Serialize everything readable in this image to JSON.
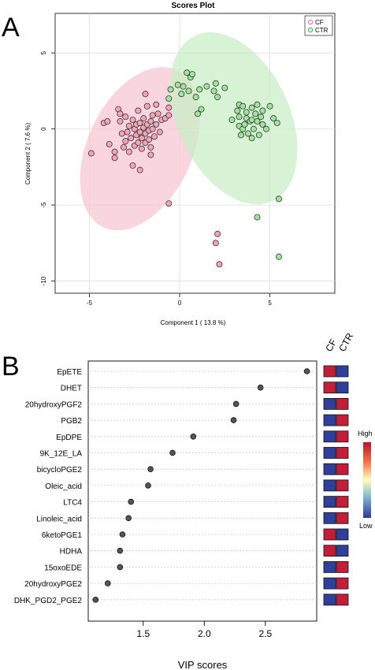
{
  "panels": {
    "a": "A",
    "b": "B"
  },
  "chart_data": [
    {
      "type": "scatter",
      "title": "Scores Plot",
      "xlabel": "Component 1 ( 13.8 %)",
      "ylabel": "Component 2 ( 7.6 %)",
      "xlim": [
        -6.9,
        8.6
      ],
      "ylim": [
        -10.8,
        7.6
      ],
      "xticks": [
        -5,
        0,
        5
      ],
      "yticks": [
        -10,
        -5,
        0,
        5
      ],
      "grid": true,
      "legend_position": "top-right",
      "series": [
        {
          "name": "CF",
          "color": "#e8708a",
          "fill": "#f5a3b8",
          "ellipse": {
            "center": [
              -2.2,
              -1.3
            ],
            "semi_axes": [
              2.9,
              5.7
            ],
            "angle_deg": 25,
            "fill": "#f7c8d4"
          },
          "points": [
            [
              -4.9,
              -1.6
            ],
            [
              -4.2,
              0.4
            ],
            [
              -4.0,
              0.5
            ],
            [
              -3.9,
              -1.0
            ],
            [
              -3.6,
              -1.5
            ],
            [
              -3.4,
              1.3
            ],
            [
              -3.3,
              0.5
            ],
            [
              -3.2,
              -0.3
            ],
            [
              -3.1,
              -1.2
            ],
            [
              -3.0,
              0.8
            ],
            [
              -3.0,
              -0.8
            ],
            [
              -2.9,
              -0.2
            ],
            [
              -2.8,
              0.2
            ],
            [
              -2.8,
              -1.5
            ],
            [
              -2.7,
              -0.6
            ],
            [
              -2.6,
              0.6
            ],
            [
              -2.6,
              -2.4
            ],
            [
              -2.5,
              0.0
            ],
            [
              -2.5,
              -1.1
            ],
            [
              -2.4,
              -0.4
            ],
            [
              -2.4,
              0.3
            ],
            [
              -2.3,
              -0.9
            ],
            [
              -2.3,
              1.2
            ],
            [
              -2.2,
              -0.2
            ],
            [
              -2.2,
              0.4
            ],
            [
              -2.1,
              -0.6
            ],
            [
              -2.1,
              -1.3
            ],
            [
              -2.0,
              0.1
            ],
            [
              -2.0,
              0.7
            ],
            [
              -1.9,
              -0.3
            ],
            [
              -1.9,
              -0.9
            ],
            [
              -1.8,
              0.3
            ],
            [
              -1.8,
              1.5
            ],
            [
              -1.7,
              -0.1
            ],
            [
              -1.7,
              -0.7
            ],
            [
              -1.6,
              0.5
            ],
            [
              -1.6,
              -1.2
            ],
            [
              -1.5,
              0.0
            ],
            [
              -1.5,
              0.9
            ],
            [
              -1.4,
              -0.5
            ],
            [
              -1.3,
              0.3
            ],
            [
              -1.2,
              1.0
            ],
            [
              -1.1,
              -0.2
            ],
            [
              -1.0,
              0.6
            ],
            [
              -0.8,
              0.7
            ],
            [
              -0.6,
              1.4
            ],
            [
              -1.9,
              2.3
            ],
            [
              -2.2,
              -2.7
            ],
            [
              -3.6,
              -1.9
            ],
            [
              -1.3,
              1.6
            ],
            [
              -1.6,
              -1.7
            ],
            [
              -3.3,
              1.0
            ],
            [
              -0.6,
              0.9
            ],
            [
              -0.6,
              -4.9
            ],
            [
              2.1,
              -6.9
            ],
            [
              2.0,
              -7.5
            ],
            [
              2.2,
              -8.9
            ]
          ]
        },
        {
          "name": "CTR",
          "color": "#3aa64a",
          "fill": "#9fe49b",
          "ellipse": {
            "center": [
              3.0,
              0.7
            ],
            "semi_axes": [
              3.1,
              6.0
            ],
            "angle_deg": -25,
            "fill": "#c9eec6"
          },
          "points": [
            [
              -0.6,
              2.0
            ],
            [
              -0.5,
              2.6
            ],
            [
              -0.1,
              2.9
            ],
            [
              0.1,
              2.3
            ],
            [
              0.2,
              2.8
            ],
            [
              0.4,
              3.7
            ],
            [
              0.5,
              2.5
            ],
            [
              0.6,
              3.4
            ],
            [
              0.7,
              3.6
            ],
            [
              0.9,
              2.1
            ],
            [
              1.0,
              1.0
            ],
            [
              1.1,
              2.6
            ],
            [
              1.2,
              1.3
            ],
            [
              1.5,
              2.8
            ],
            [
              1.9,
              2.5
            ],
            [
              2.0,
              3.0
            ],
            [
              2.1,
              2.1
            ],
            [
              2.5,
              2.7
            ],
            [
              2.9,
              0.6
            ],
            [
              3.2,
              1.2
            ],
            [
              3.3,
              1.6
            ],
            [
              3.3,
              0.2
            ],
            [
              3.5,
              1.5
            ],
            [
              3.5,
              0.0
            ],
            [
              3.7,
              0.7
            ],
            [
              3.7,
              1.1
            ],
            [
              3.8,
              -0.3
            ],
            [
              3.9,
              0.5
            ],
            [
              4.0,
              1.4
            ],
            [
              4.0,
              0.6
            ],
            [
              4.1,
              0.0
            ],
            [
              4.2,
              1.0
            ],
            [
              4.3,
              0.5
            ],
            [
              4.3,
              1.6
            ],
            [
              4.4,
              -0.4
            ],
            [
              4.5,
              0.8
            ],
            [
              4.6,
              0.3
            ],
            [
              4.6,
              1.2
            ],
            [
              4.8,
              0.0
            ],
            [
              5.2,
              0.7
            ],
            [
              3.3,
              0.8
            ],
            [
              4.0,
              -0.6
            ],
            [
              3.4,
              -0.4
            ],
            [
              3.6,
              0.3
            ],
            [
              5.4,
              0.4
            ],
            [
              5.0,
              1.5
            ],
            [
              5.5,
              -4.6
            ],
            [
              4.3,
              -5.8
            ],
            [
              5.5,
              -8.4
            ]
          ]
        }
      ]
    },
    {
      "type": "dot",
      "xlabel": "VIP scores",
      "xlim": [
        1.05,
        2.92
      ],
      "xticks": [
        1.5,
        2.0,
        2.5
      ],
      "tick_labels": [
        "1.5",
        "2.0",
        "2.5"
      ],
      "categories": [
        "EpETE",
        "DHET",
        "20hydroxyPGF2",
        "PGB2",
        "EpDPE",
        "9K_12E_LA",
        "bicycloPGE2",
        "Oleic_acid",
        "LTC4",
        "Linoleic_acid",
        "6ketoPGE1",
        "HDHA",
        "15oxoEDE",
        "20hydroxyPGE2",
        "DHK_PGD2_PGE2"
      ],
      "values": [
        2.84,
        2.46,
        2.26,
        2.24,
        1.91,
        1.74,
        1.56,
        1.54,
        1.4,
        1.38,
        1.33,
        1.31,
        1.31,
        1.21,
        1.11
      ],
      "point_color": "#555555",
      "heatmap": {
        "columns": [
          "CF",
          "CTR"
        ],
        "high_color": "#c21e3a",
        "low_color": "#2f3f9a",
        "levels": [
          [
            "high",
            "low"
          ],
          [
            "high",
            "low"
          ],
          [
            "low",
            "high"
          ],
          [
            "low",
            "high"
          ],
          [
            "low",
            "high"
          ],
          [
            "low",
            "high"
          ],
          [
            "low",
            "high"
          ],
          [
            "low",
            "high"
          ],
          [
            "low",
            "high"
          ],
          [
            "low",
            "high"
          ],
          [
            "high",
            "low"
          ],
          [
            "high",
            "low"
          ],
          [
            "low",
            "high"
          ],
          [
            "low",
            "high"
          ],
          [
            "low",
            "high"
          ]
        ]
      },
      "colorbar": {
        "high_label": "High",
        "low_label": "Low"
      }
    }
  ]
}
